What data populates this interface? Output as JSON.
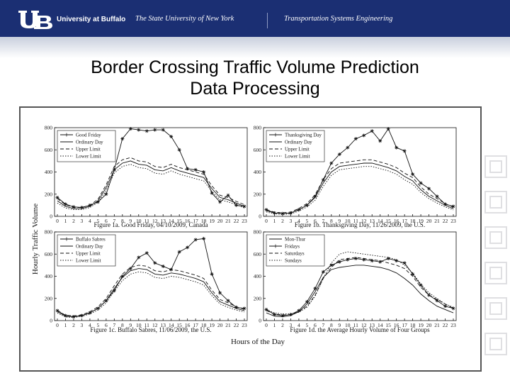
{
  "header": {
    "university": "University at Buffalo",
    "suny": "The State University of New York",
    "department": "Transportation Systems Engineering"
  },
  "slide": {
    "title_line1": "Border Crossing Traffic Volume Prediction",
    "title_line2": "Data Processing"
  },
  "figure": {
    "shared_ylabel": "Hourly Traffic Volume",
    "shared_xlabel": "Hours of the Day"
  },
  "colors": {
    "header_bg": "#1b2f73",
    "band": "#c9cfdd"
  },
  "chart_data": [
    {
      "type": "line",
      "caption": "Figure 1a. Good Friday, 04/10/2009, Canada",
      "ylim": [
        0,
        800
      ],
      "yticks": [
        "0",
        "200",
        "400",
        "600",
        "800"
      ],
      "x": [
        0,
        1,
        2,
        3,
        4,
        5,
        6,
        7,
        8,
        9,
        10,
        11,
        12,
        13,
        14,
        15,
        16,
        17,
        18,
        19,
        20,
        21,
        22,
        23
      ],
      "series": [
        {
          "name": "Good Friday",
          "style": "star",
          "values": [
            170,
            110,
            85,
            80,
            100,
            130,
            200,
            420,
            700,
            790,
            780,
            770,
            780,
            780,
            720,
            600,
            430,
            420,
            400,
            210,
            130,
            190,
            100,
            90
          ]
        },
        {
          "name": "Ordinary Day",
          "style": "solid",
          "values": [
            140,
            90,
            70,
            70,
            90,
            140,
            260,
            420,
            480,
            500,
            470,
            460,
            420,
            410,
            440,
            410,
            390,
            370,
            350,
            250,
            170,
            150,
            120,
            90
          ]
        },
        {
          "name": "Upper Limit",
          "style": "dash",
          "values": [
            160,
            105,
            80,
            80,
            100,
            155,
            285,
            450,
            510,
            530,
            500,
            490,
            450,
            440,
            470,
            440,
            420,
            400,
            380,
            275,
            190,
            170,
            135,
            105
          ]
        },
        {
          "name": "Lower Limit",
          "style": "dot",
          "values": [
            120,
            75,
            60,
            60,
            80,
            125,
            235,
            390,
            450,
            470,
            440,
            430,
            390,
            380,
            410,
            380,
            360,
            340,
            320,
            225,
            150,
            130,
            105,
            75
          ]
        }
      ]
    },
    {
      "type": "line",
      "caption": "Figure 1b. Thanksgiving Day, 11/26/2009, the U.S.",
      "ylim": [
        0,
        800
      ],
      "yticks": [
        "0",
        "200",
        "400",
        "600",
        "800"
      ],
      "x": [
        0,
        1,
        2,
        3,
        4,
        5,
        6,
        7,
        8,
        9,
        10,
        11,
        12,
        13,
        14,
        15,
        16,
        17,
        18,
        19,
        20,
        21,
        22,
        23
      ],
      "series": [
        {
          "name": "Thanksgiving Day",
          "style": "star",
          "values": [
            60,
            30,
            25,
            30,
            60,
            100,
            180,
            330,
            480,
            560,
            620,
            700,
            730,
            770,
            680,
            790,
            620,
            590,
            380,
            300,
            250,
            180,
            110,
            90
          ]
        },
        {
          "name": "Ordinary Day",
          "style": "solid",
          "values": [
            50,
            30,
            25,
            30,
            60,
            100,
            170,
            300,
            400,
            450,
            460,
            470,
            480,
            480,
            460,
            440,
            410,
            360,
            320,
            240,
            180,
            140,
            100,
            70
          ]
        },
        {
          "name": "Upper Limit",
          "style": "dash",
          "values": [
            60,
            38,
            32,
            38,
            72,
            115,
            195,
            330,
            430,
            480,
            490,
            500,
            510,
            510,
            490,
            470,
            440,
            390,
            350,
            265,
            200,
            160,
            115,
            82
          ]
        },
        {
          "name": "Lower Limit",
          "style": "dot",
          "values": [
            40,
            22,
            18,
            22,
            48,
            85,
            145,
            270,
            370,
            420,
            430,
            440,
            450,
            450,
            430,
            410,
            380,
            330,
            290,
            215,
            160,
            120,
            85,
            58
          ]
        }
      ]
    },
    {
      "type": "line",
      "caption": "Figure 1c. Buffalo Sabres, 11/06/2009, the U.S.",
      "ylim": [
        0,
        800
      ],
      "yticks": [
        "0",
        "200",
        "400",
        "600",
        "800"
      ],
      "x": [
        0,
        1,
        2,
        3,
        4,
        5,
        6,
        7,
        8,
        9,
        10,
        11,
        12,
        13,
        14,
        15,
        16,
        17,
        18,
        19,
        20,
        21,
        22,
        23
      ],
      "series": [
        {
          "name": "Buffalo Sabres",
          "style": "star",
          "values": [
            90,
            45,
            35,
            45,
            70,
            110,
            180,
            270,
            400,
            470,
            570,
            610,
            520,
            490,
            460,
            620,
            660,
            730,
            740,
            420,
            250,
            180,
            120,
            110
          ]
        },
        {
          "name": "Ordinary Day",
          "style": "solid",
          "values": [
            80,
            40,
            35,
            45,
            70,
            110,
            180,
            290,
            390,
            450,
            470,
            460,
            420,
            410,
            430,
            420,
            400,
            380,
            350,
            250,
            170,
            140,
            110,
            90
          ]
        },
        {
          "name": "Upper Limit",
          "style": "dash",
          "values": [
            92,
            48,
            42,
            52,
            80,
            125,
            200,
            315,
            420,
            480,
            500,
            490,
            450,
            440,
            460,
            450,
            430,
            410,
            380,
            275,
            190,
            160,
            125,
            102
          ]
        },
        {
          "name": "Lower Limit",
          "style": "dot",
          "values": [
            68,
            32,
            28,
            38,
            60,
            95,
            160,
            265,
            360,
            420,
            440,
            430,
            390,
            380,
            400,
            390,
            370,
            350,
            320,
            225,
            150,
            120,
            95,
            78
          ]
        }
      ]
    },
    {
      "type": "line",
      "caption": "Figure 1d. the Average Hourly Volume of Four Groups",
      "ylim": [
        0,
        800
      ],
      "yticks": [
        "0",
        "200",
        "400",
        "600",
        "800"
      ],
      "x": [
        0,
        1,
        2,
        3,
        4,
        5,
        6,
        7,
        8,
        9,
        10,
        11,
        12,
        13,
        14,
        15,
        16,
        17,
        18,
        19,
        20,
        21,
        22,
        23
      ],
      "series": [
        {
          "name": "Mon-Thur",
          "style": "solid",
          "values": [
            70,
            40,
            35,
            45,
            80,
            150,
            260,
            390,
            460,
            480,
            490,
            500,
            500,
            490,
            480,
            460,
            430,
            380,
            320,
            240,
            180,
            130,
            100,
            70
          ]
        },
        {
          "name": "Fridays",
          "style": "star",
          "values": [
            100,
            55,
            45,
            55,
            90,
            170,
            290,
            440,
            500,
            530,
            550,
            560,
            550,
            540,
            530,
            560,
            540,
            520,
            420,
            320,
            230,
            180,
            130,
            110
          ]
        },
        {
          "name": "Saturdays",
          "style": "dash",
          "values": [
            90,
            60,
            50,
            55,
            80,
            130,
            230,
            380,
            480,
            550,
            560,
            570,
            560,
            550,
            540,
            520,
            500,
            470,
            400,
            300,
            230,
            190,
            150,
            110
          ]
        },
        {
          "name": "Sundays",
          "style": "dot",
          "values": [
            100,
            70,
            60,
            60,
            75,
            120,
            220,
            380,
            520,
            600,
            620,
            610,
            600,
            590,
            580,
            570,
            550,
            500,
            430,
            330,
            250,
            200,
            150,
            120
          ]
        }
      ]
    }
  ]
}
